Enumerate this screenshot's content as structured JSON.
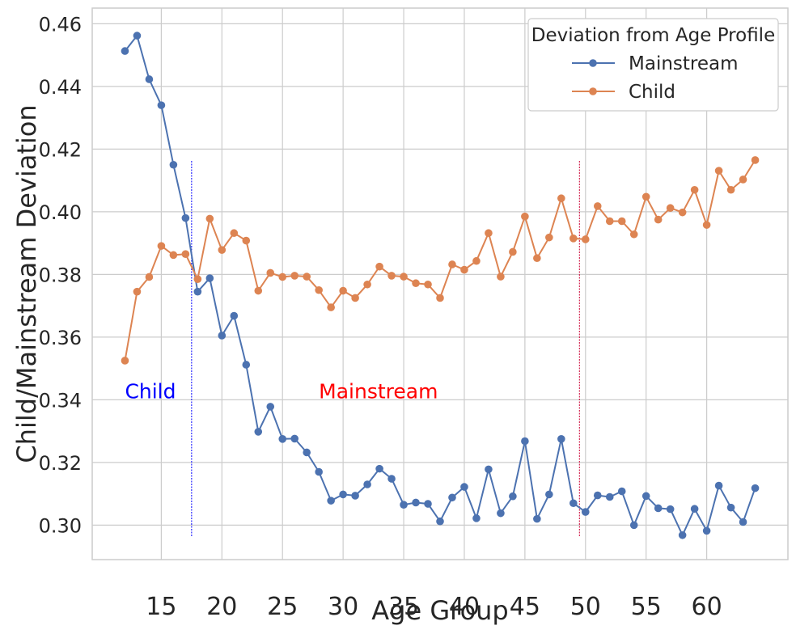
{
  "chart_data": {
    "type": "line",
    "xlabel": "Age Group",
    "ylabel": "Child/Mainstream Deviation",
    "xlim": [
      9.3,
      66.7
    ],
    "ylim": [
      0.289,
      0.465
    ],
    "x_ticks": [
      15,
      20,
      25,
      30,
      35,
      40,
      45,
      50,
      55,
      60
    ],
    "x_tick_labels": [
      "15",
      "20",
      "25",
      "30",
      "35",
      "40",
      "45",
      "50",
      "55",
      "60"
    ],
    "y_ticks": [
      0.3,
      0.32,
      0.34,
      0.36,
      0.38,
      0.4,
      0.42,
      0.44,
      0.46
    ],
    "y_tick_labels": [
      "0.30",
      "0.32",
      "0.34",
      "0.36",
      "0.38",
      "0.40",
      "0.42",
      "0.44",
      "0.46"
    ],
    "grid": true,
    "legend": {
      "title": "Deviation from Age Profile",
      "placement": "top-right"
    },
    "x": [
      12,
      13,
      14,
      15,
      16,
      17,
      18,
      19,
      20,
      21,
      22,
      23,
      24,
      25,
      26,
      27,
      28,
      29,
      30,
      31,
      32,
      33,
      34,
      35,
      36,
      37,
      38,
      39,
      40,
      41,
      42,
      43,
      44,
      45,
      46,
      47,
      48,
      49,
      50,
      51,
      52,
      53,
      54,
      55,
      56,
      57,
      58,
      59,
      60,
      61,
      62,
      63,
      64
    ],
    "series": [
      {
        "name": "Mainstream",
        "color": "#4c72b0",
        "values": [
          0.4513,
          0.4562,
          0.4423,
          0.434,
          0.415,
          0.398,
          0.3745,
          0.3788,
          0.3605,
          0.3668,
          0.3512,
          0.3298,
          0.3378,
          0.3275,
          0.3276,
          0.3232,
          0.317,
          0.3078,
          0.3098,
          0.3094,
          0.313,
          0.318,
          0.3148,
          0.3065,
          0.3072,
          0.3068,
          0.3012,
          0.3088,
          0.3122,
          0.3022,
          0.3178,
          0.3038,
          0.3092,
          0.3268,
          0.302,
          0.3098,
          0.3275,
          0.307,
          0.3042,
          0.3095,
          0.309,
          0.3108,
          0.3,
          0.3093,
          0.3054,
          0.3051,
          0.2968,
          0.3052,
          0.2982,
          0.3126,
          0.3056,
          0.301,
          0.3118
        ]
      },
      {
        "name": "Child",
        "color": "#dd8452",
        "values": [
          0.3525,
          0.3745,
          0.3792,
          0.3891,
          0.3862,
          0.3865,
          0.3785,
          0.3978,
          0.3878,
          0.3932,
          0.3908,
          0.3748,
          0.3805,
          0.3792,
          0.3796,
          0.3793,
          0.375,
          0.3695,
          0.3748,
          0.3725,
          0.3768,
          0.3825,
          0.3796,
          0.3793,
          0.3772,
          0.3768,
          0.3725,
          0.3832,
          0.3815,
          0.3843,
          0.3932,
          0.3793,
          0.3872,
          0.3985,
          0.3852,
          0.3918,
          0.4043,
          0.3915,
          0.3912,
          0.4018,
          0.397,
          0.397,
          0.3928,
          0.4048,
          0.3975,
          0.4012,
          0.3998,
          0.407,
          0.3958,
          0.4131,
          0.407,
          0.4103,
          0.4165
        ]
      }
    ],
    "vlines": [
      {
        "x": 17.5,
        "ymin": 0.2965,
        "ymax": 0.4165,
        "color": "#0000ff"
      },
      {
        "x": 49.5,
        "ymin": 0.2965,
        "ymax": 0.4165,
        "color": "#cc0033"
      }
    ],
    "annotations": [
      {
        "text": "Child",
        "x": 12.0,
        "y": 0.3405,
        "color": "#0000ff"
      },
      {
        "text": "Mainstream",
        "x": 28.0,
        "y": 0.3405,
        "color": "#ff0000"
      }
    ]
  }
}
